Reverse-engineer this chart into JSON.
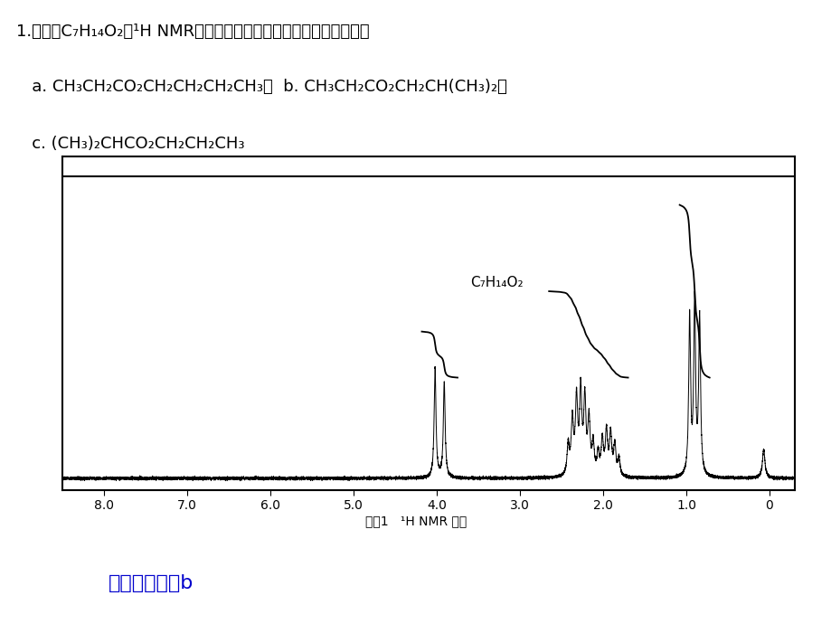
{
  "bg_color": "#ffffff",
  "line1": "1.化合物C₇H₁₄O₂的¹H NMR谱图如下，它是下列结构式中的那一种？",
  "line2": "   a. CH₃CH₂CO₂CH₂CH₂CH₂CH₃；  b. CH₃CH₂CO₂CH₂CH(CH₃)₂；",
  "line3": "   c. (CH₃)₂CHCO₂CH₂CH₂CH₃",
  "formula": "C₇H₁₄O₂",
  "caption": "习题1   ¹H NMR 谱图",
  "answer": "解：化合物为b",
  "answer_color": "#0000cc"
}
